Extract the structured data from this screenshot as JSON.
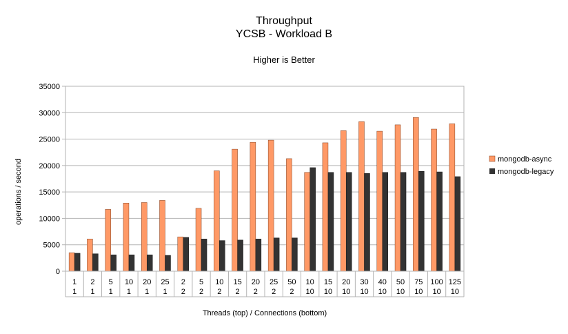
{
  "chart_data": {
    "type": "bar",
    "title": "Throughput",
    "subtitle": "YCSB - Workload B",
    "note": "Higher is Better",
    "xlabel": "Threads (top) / Connections (bottom)",
    "ylabel": "operations / second",
    "ylim": [
      0,
      35000
    ],
    "yticks": [
      0,
      5000,
      10000,
      15000,
      20000,
      25000,
      30000,
      35000
    ],
    "grid": true,
    "legend_position": "right",
    "categories_top": [
      "1",
      "2",
      "5",
      "10",
      "20",
      "25",
      "2",
      "5",
      "10",
      "15",
      "20",
      "25",
      "50",
      "10",
      "15",
      "20",
      "30",
      "40",
      "50",
      "75",
      "100",
      "125"
    ],
    "categories_bottom": [
      "1",
      "1",
      "1",
      "1",
      "1",
      "1",
      "2",
      "2",
      "2",
      "2",
      "2",
      "2",
      "2",
      "10",
      "10",
      "10",
      "10",
      "10",
      "10",
      "10",
      "10",
      "10"
    ],
    "series": [
      {
        "name": "mongodb-async",
        "color": "#ff9966",
        "values": [
          3500,
          6100,
          11700,
          12900,
          13000,
          13400,
          6500,
          11900,
          19000,
          23100,
          24400,
          24800,
          21300,
          18700,
          24300,
          26600,
          28300,
          26500,
          27700,
          29100,
          26900,
          27900
        ]
      },
      {
        "name": "mongodb-legacy",
        "color": "#333333",
        "values": [
          3400,
          3300,
          3100,
          3100,
          3100,
          3000,
          6400,
          6100,
          5800,
          5900,
          6100,
          6300,
          6300,
          19600,
          18700,
          18700,
          18500,
          18700,
          18700,
          18900,
          18800,
          17900
        ]
      }
    ]
  }
}
